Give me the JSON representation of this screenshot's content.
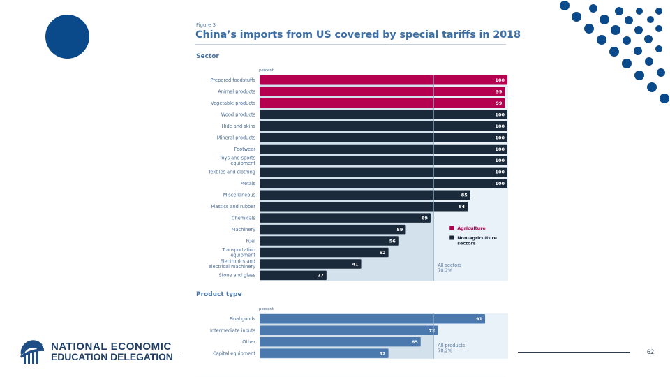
{
  "slide": {
    "page_number": "62",
    "logo": {
      "line1": "NATIONAL ECONOMIC",
      "line2": "EDUCATION DELEGATION",
      "icon": "bridge-globe-logo-icon"
    },
    "colors": {
      "brand_blue": "#0b4a8a",
      "agriculture": "#b5004f",
      "non_agriculture": "#1b2a3a",
      "product_bar": "#4b79ad",
      "panel_left": "#d3e1ed",
      "panel_right": "#eaf2f9"
    }
  },
  "figure": {
    "label": "Figure 3",
    "title": "China’s imports from US covered by special tariffs in 2018"
  },
  "chart_data": [
    {
      "type": "bar",
      "orientation": "horizontal",
      "section_title": "Sector",
      "unit_label": "percent",
      "xlim": [
        0,
        100
      ],
      "categories": [
        "Prepared foodstuffs",
        "Animal products",
        "Vegetable products",
        "Wood products",
        "Hide and skins",
        "Mineral products",
        "Footwear",
        "Toys and sports equipment",
        "Textiles and clothing",
        "Metals",
        "Miscellaneous",
        "Plastics and rubber",
        "Chemicals",
        "Machinery",
        "Fuel",
        "Transportation equipment",
        "Electronics and electrical machinery",
        "Stone and glass"
      ],
      "category_lines": [
        [
          "Prepared foodstuffs"
        ],
        [
          "Animal products"
        ],
        [
          "Vegetable products"
        ],
        [
          "Wood products"
        ],
        [
          "Hide and skins"
        ],
        [
          "Mineral products"
        ],
        [
          "Footwear"
        ],
        [
          "Toys and sports",
          "equipment"
        ],
        [
          "Textiles and clothing"
        ],
        [
          "Metals"
        ],
        [
          "Miscellaneous"
        ],
        [
          "Plastics and rubber"
        ],
        [
          "Chemicals"
        ],
        [
          "Machinery"
        ],
        [
          "Fuel"
        ],
        [
          "Transportation",
          "equipment"
        ],
        [
          "Electronics and",
          "electrical machinery"
        ],
        [
          "Stone and glass"
        ]
      ],
      "values": [
        100,
        99,
        99,
        100,
        100,
        100,
        100,
        100,
        100,
        100,
        85,
        84,
        69,
        59,
        56,
        52,
        41,
        27
      ],
      "groups": [
        "Agriculture",
        "Agriculture",
        "Agriculture",
        "Non-agriculture sectors",
        "Non-agriculture sectors",
        "Non-agriculture sectors",
        "Non-agriculture sectors",
        "Non-agriculture sectors",
        "Non-agriculture sectors",
        "Non-agriculture sectors",
        "Non-agriculture sectors",
        "Non-agriculture sectors",
        "Non-agriculture sectors",
        "Non-agriculture sectors",
        "Non-agriculture sectors",
        "Non-agriculture sectors",
        "Non-agriculture sectors",
        "Non-agriculture sectors"
      ],
      "legend": [
        {
          "name": "Agriculture",
          "lines": [
            "Agriculture"
          ],
          "color": "#b5004f"
        },
        {
          "name": "Non-agriculture sectors",
          "lines": [
            "Non-agriculture",
            "sectors"
          ],
          "color": "#1b2a3a"
        }
      ],
      "legend_position": "right",
      "reference": {
        "value": 70.2,
        "label_lines": [
          "All sectors",
          "70.2%"
        ]
      }
    },
    {
      "type": "bar",
      "orientation": "horizontal",
      "section_title": "Product type",
      "unit_label": "percent",
      "xlim": [
        0,
        100
      ],
      "categories": [
        "Final goods",
        "Intermediate inputs",
        "Other",
        "Capital equipment"
      ],
      "category_lines": [
        [
          "Final goods"
        ],
        [
          "Intermediate inputs"
        ],
        [
          "Other"
        ],
        [
          "Capital equipment"
        ]
      ],
      "values": [
        91,
        72,
        65,
        52
      ],
      "color": "#4b79ad",
      "reference": {
        "value": 70.2,
        "label_lines": [
          "All products",
          "70.2%"
        ]
      }
    }
  ]
}
